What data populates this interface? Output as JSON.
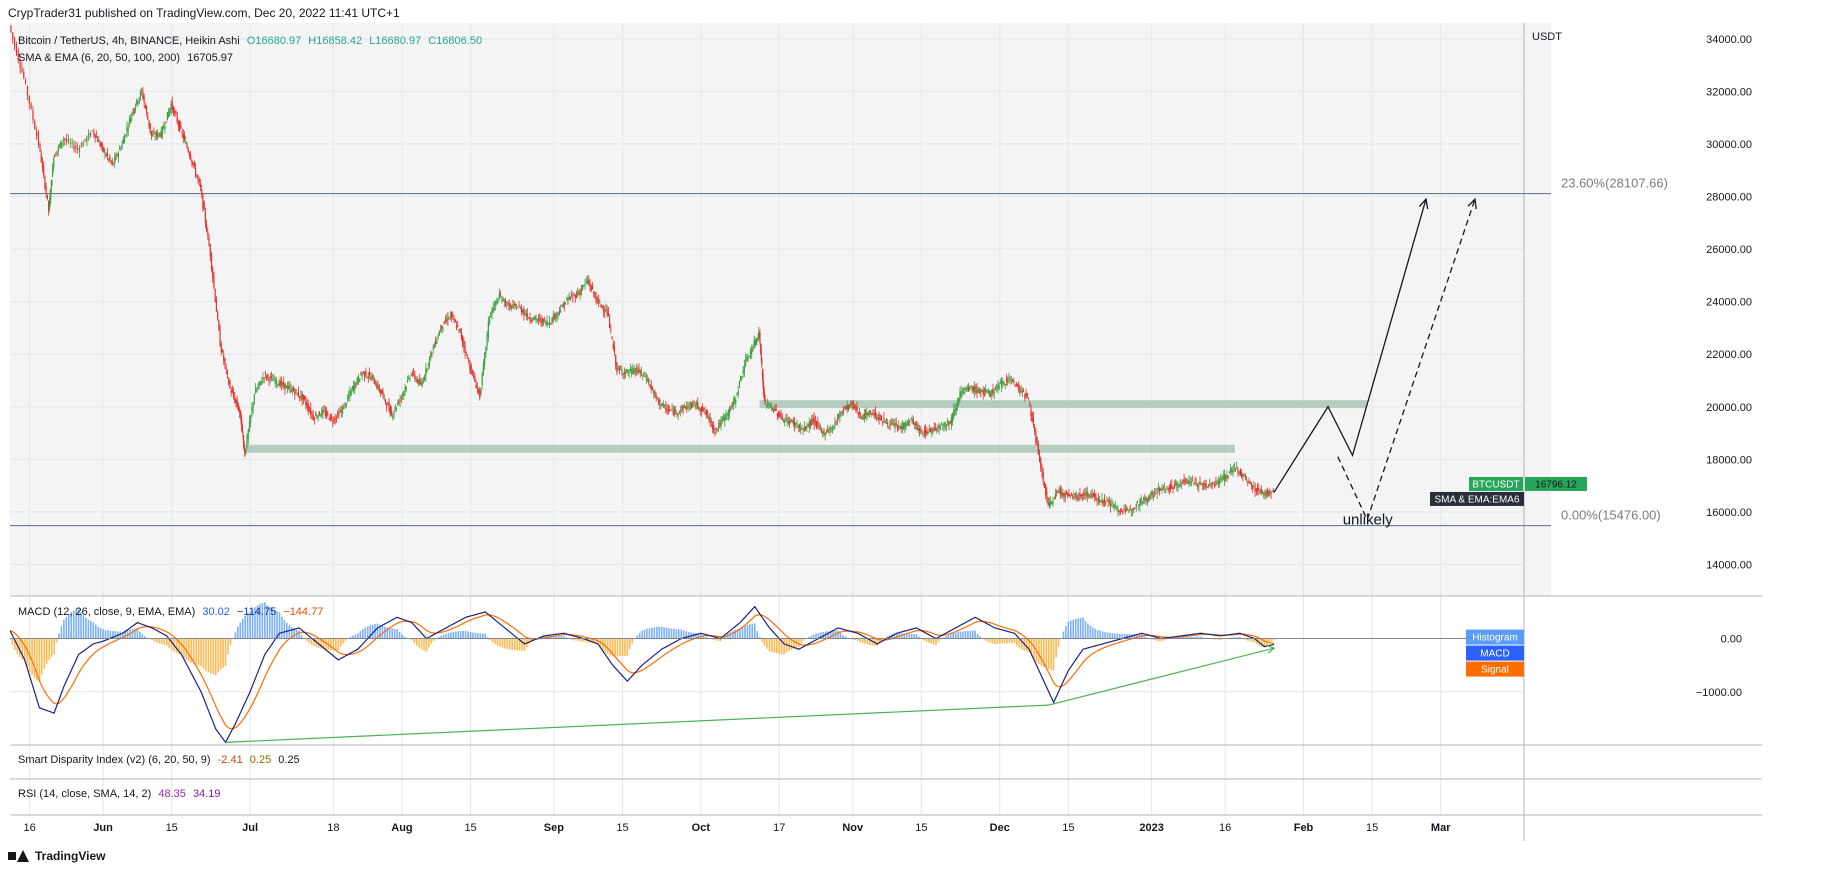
{
  "header": {
    "publisher": "CrypTrader31 published on TradingView.com, Dec 20, 2022 11:41 UTC+1"
  },
  "legend": {
    "symbol": "Bitcoin / TetherUS, 4h, BINANCE, Heikin Ashi",
    "open": "O16680.97",
    "high": "H16858.42",
    "low": "L16680.97",
    "close": "C16806.50",
    "sma_ema_name": "SMA & EMA (6, 20, 50, 100, 200)",
    "sma_ema_value": "16705.97",
    "macd_name": "MACD (12, 26, close, 9, EMA, EMA)",
    "macd_hist": "30.02",
    "macd_line": "−114.75",
    "macd_signal": "−144.77",
    "sdi_name": "Smart Disparity Index (v2) (6, 20, 50, 9)",
    "sdi_v1": "-2.41",
    "sdi_v2": "0.25",
    "sdi_v3": "0.25",
    "rsi_name": "RSI (14, close, SMA, 14, 2)",
    "rsi_v1": "48.35",
    "rsi_v2": "34.19"
  },
  "footer": {
    "brand": "TradingView"
  },
  "colors": {
    "up": "#26a69a",
    "down": "#ef5350",
    "candle_up": "#3f9e3f",
    "candle_down": "#e0302a",
    "zone": "#a9c5b5",
    "macd_line": "#2962ff",
    "signal_line": "#ff6d00",
    "hist_pos": "#5b9cf6",
    "hist_neg": "#ffa726",
    "trend_green": "#4caf50",
    "fib_line": "#787b86",
    "price_label": "#26a65b",
    "ema_label": "#2a2e39"
  },
  "chart_data": {
    "type": "candlestick",
    "symbol": "BTCUSDT",
    "timeframe": "4h",
    "price_axis_unit": "USDT",
    "price_ticks": [
      "34000.00",
      "32000.00",
      "30000.00",
      "28000.00",
      "26000.00",
      "24000.00",
      "22000.00",
      "20000.00",
      "18000.00",
      "16000.00",
      "14000.00"
    ],
    "price_tick_values": [
      34000,
      32000,
      30000,
      28000,
      26000,
      24000,
      22000,
      20000,
      18000,
      16000,
      14000
    ],
    "ylim": [
      12800,
      34600
    ],
    "time_ticks": [
      "16",
      "Jun",
      "15",
      "Jul",
      "18",
      "Aug",
      "15",
      "Sep",
      "15",
      "Oct",
      "17",
      "Nov",
      "15",
      "Dec",
      "15",
      "2023",
      "16",
      "Feb",
      "15",
      "Mar"
    ],
    "time_tick_days": [
      -15,
      0,
      14,
      30,
      47,
      61,
      75,
      92,
      106,
      122,
      138,
      153,
      167,
      183,
      197,
      214,
      229,
      245,
      259,
      273
    ],
    "xlim": [
      -19,
      290
    ],
    "price_path": [
      [
        -19,
        34500
      ],
      [
        -16,
        32500
      ],
      [
        -13,
        30000
      ],
      [
        -11,
        27500
      ],
      [
        -10,
        29500
      ],
      [
        -8,
        30200
      ],
      [
        -5,
        29800
      ],
      [
        -2,
        30500
      ],
      [
        0,
        29800
      ],
      [
        2,
        29200
      ],
      [
        4,
        30000
      ],
      [
        6,
        31200
      ],
      [
        8,
        32000
      ],
      [
        10,
        30300
      ],
      [
        12,
        30400
      ],
      [
        14,
        31500
      ],
      [
        16,
        30500
      ],
      [
        18,
        29500
      ],
      [
        20,
        28300
      ],
      [
        22,
        25800
      ],
      [
        24,
        22400
      ],
      [
        26,
        20700
      ],
      [
        28,
        19800
      ],
      [
        29,
        18200
      ],
      [
        31,
        20500
      ],
      [
        33,
        21200
      ],
      [
        35,
        21000
      ],
      [
        37,
        20800
      ],
      [
        39,
        20600
      ],
      [
        41,
        20300
      ],
      [
        43,
        19600
      ],
      [
        45,
        19800
      ],
      [
        47,
        19500
      ],
      [
        49,
        19900
      ],
      [
        51,
        20700
      ],
      [
        53,
        21300
      ],
      [
        55,
        21100
      ],
      [
        57,
        20500
      ],
      [
        59,
        19700
      ],
      [
        61,
        20400
      ],
      [
        63,
        21300
      ],
      [
        65,
        20800
      ],
      [
        67,
        22000
      ],
      [
        69,
        23000
      ],
      [
        71,
        23500
      ],
      [
        73,
        22800
      ],
      [
        75,
        21500
      ],
      [
        77,
        20400
      ],
      [
        79,
        23500
      ],
      [
        81,
        24200
      ],
      [
        83,
        23800
      ],
      [
        85,
        23800
      ],
      [
        87,
        23400
      ],
      [
        89,
        23300
      ],
      [
        91,
        23200
      ],
      [
        93,
        23600
      ],
      [
        95,
        24100
      ],
      [
        97,
        24300
      ],
      [
        99,
        24800
      ],
      [
        101,
        24000
      ],
      [
        103,
        23600
      ],
      [
        105,
        21400
      ],
      [
        107,
        21300
      ],
      [
        109,
        21400
      ],
      [
        111,
        21100
      ],
      [
        113,
        20300
      ],
      [
        115,
        19900
      ],
      [
        117,
        19800
      ],
      [
        119,
        20000
      ],
      [
        121,
        20100
      ],
      [
        123,
        19800
      ],
      [
        125,
        19100
      ],
      [
        127,
        19600
      ],
      [
        129,
        20200
      ],
      [
        131,
        21600
      ],
      [
        133,
        22400
      ],
      [
        134,
        22800
      ],
      [
        135,
        20200
      ],
      [
        137,
        19900
      ],
      [
        139,
        19500
      ],
      [
        141,
        19400
      ],
      [
        143,
        19100
      ],
      [
        145,
        19500
      ],
      [
        147,
        19000
      ],
      [
        149,
        19200
      ],
      [
        151,
        19900
      ],
      [
        153,
        20100
      ],
      [
        155,
        19600
      ],
      [
        157,
        19800
      ],
      [
        159,
        19500
      ],
      [
        161,
        19300
      ],
      [
        163,
        19200
      ],
      [
        165,
        19500
      ],
      [
        167,
        19000
      ],
      [
        169,
        19100
      ],
      [
        171,
        19300
      ],
      [
        173,
        19400
      ],
      [
        175,
        20500
      ],
      [
        177,
        20700
      ],
      [
        179,
        20600
      ],
      [
        181,
        20500
      ],
      [
        183,
        20800
      ],
      [
        185,
        21100
      ],
      [
        187,
        20700
      ],
      [
        189,
        20300
      ],
      [
        191,
        18200
      ],
      [
        193,
        16200
      ],
      [
        195,
        16800
      ],
      [
        197,
        16600
      ],
      [
        199,
        16600
      ],
      [
        201,
        16700
      ],
      [
        203,
        16500
      ],
      [
        205,
        16400
      ],
      [
        207,
        16100
      ],
      [
        209,
        16000
      ],
      [
        211,
        16300
      ],
      [
        213,
        16500
      ],
      [
        215,
        16800
      ],
      [
        217,
        16900
      ],
      [
        219,
        17000
      ],
      [
        221,
        17200
      ],
      [
        223,
        17100
      ],
      [
        225,
        17000
      ],
      [
        227,
        17100
      ],
      [
        229,
        17300
      ],
      [
        231,
        17700
      ],
      [
        233,
        17300
      ],
      [
        235,
        16900
      ],
      [
        237,
        16700
      ],
      [
        239,
        16800
      ]
    ],
    "zones": [
      {
        "x_start": 29,
        "x_end": 231,
        "y_low": 18250,
        "y_high": 18550
      },
      {
        "x_start": 134,
        "x_end": 258,
        "y_low": 19950,
        "y_high": 20250
      }
    ],
    "projection_main": [
      [
        239,
        16750
      ],
      [
        250,
        20000
      ],
      [
        255,
        18150
      ],
      [
        270,
        27900
      ]
    ],
    "projection_alt": [
      [
        252,
        18100
      ],
      [
        258,
        15700
      ],
      [
        280,
        27900
      ]
    ],
    "fib_levels": [
      {
        "label": "23.60%(28107.66)",
        "price": 28107.66
      },
      {
        "label": "0.00%(15476.00)",
        "price": 15476.0
      }
    ],
    "annotation": "unlikely",
    "last_price_label": "BTCUSDT",
    "last_price": "16796.12",
    "ema_label": "SMA & EMA:EMA6",
    "macd": {
      "ticks": [
        "0.00",
        "−1000.00"
      ],
      "tick_values": [
        0,
        -1000
      ],
      "ylim": [
        -2000,
        800
      ],
      "labels": [
        "Histogram",
        "MACD",
        "Signal"
      ],
      "label_colors": [
        "#5b9cf6",
        "#2962ff",
        "#ff6d00"
      ],
      "macd_path": [
        [
          -19,
          150
        ],
        [
          -16,
          -400
        ],
        [
          -13,
          -1300
        ],
        [
          -10,
          -1400
        ],
        [
          -8,
          -900
        ],
        [
          -5,
          -300
        ],
        [
          -2,
          -100
        ],
        [
          0,
          -50
        ],
        [
          4,
          100
        ],
        [
          7,
          300
        ],
        [
          10,
          200
        ],
        [
          13,
          50
        ],
        [
          16,
          -300
        ],
        [
          20,
          -1000
        ],
        [
          23,
          -1700
        ],
        [
          25,
          -1950
        ],
        [
          27,
          -1600
        ],
        [
          30,
          -1000
        ],
        [
          33,
          -300
        ],
        [
          36,
          100
        ],
        [
          40,
          200
        ],
        [
          44,
          -100
        ],
        [
          48,
          -400
        ],
        [
          52,
          -200
        ],
        [
          56,
          200
        ],
        [
          60,
          400
        ],
        [
          63,
          300
        ],
        [
          66,
          0
        ],
        [
          70,
          200
        ],
        [
          74,
          400
        ],
        [
          78,
          500
        ],
        [
          82,
          200
        ],
        [
          86,
          -100
        ],
        [
          90,
          50
        ],
        [
          94,
          100
        ],
        [
          98,
          0
        ],
        [
          101,
          -100
        ],
        [
          104,
          -500
        ],
        [
          107,
          -800
        ],
        [
          110,
          -500
        ],
        [
          114,
          -200
        ],
        [
          118,
          0
        ],
        [
          122,
          100
        ],
        [
          126,
          0
        ],
        [
          130,
          300
        ],
        [
          133,
          600
        ],
        [
          136,
          200
        ],
        [
          139,
          -100
        ],
        [
          142,
          -200
        ],
        [
          146,
          0
        ],
        [
          150,
          200
        ],
        [
          154,
          100
        ],
        [
          158,
          -100
        ],
        [
          162,
          100
        ],
        [
          166,
          200
        ],
        [
          170,
          0
        ],
        [
          174,
          200
        ],
        [
          178,
          400
        ],
        [
          182,
          200
        ],
        [
          186,
          100
        ],
        [
          189,
          -200
        ],
        [
          192,
          -800
        ],
        [
          194,
          -1200
        ],
        [
          197,
          -600
        ],
        [
          200,
          -200
        ],
        [
          204,
          -100
        ],
        [
          208,
          0
        ],
        [
          212,
          100
        ],
        [
          216,
          0
        ],
        [
          220,
          50
        ],
        [
          224,
          100
        ],
        [
          228,
          50
        ],
        [
          232,
          100
        ],
        [
          235,
          0
        ],
        [
          237,
          -150
        ],
        [
          239,
          -110
        ]
      ],
      "divergence_lines": [
        [
          [
            25,
            -1950
          ],
          [
            193,
            -1250
          ]
        ],
        [
          [
            193,
            -1250
          ],
          [
            239,
            -180
          ]
        ]
      ]
    }
  }
}
